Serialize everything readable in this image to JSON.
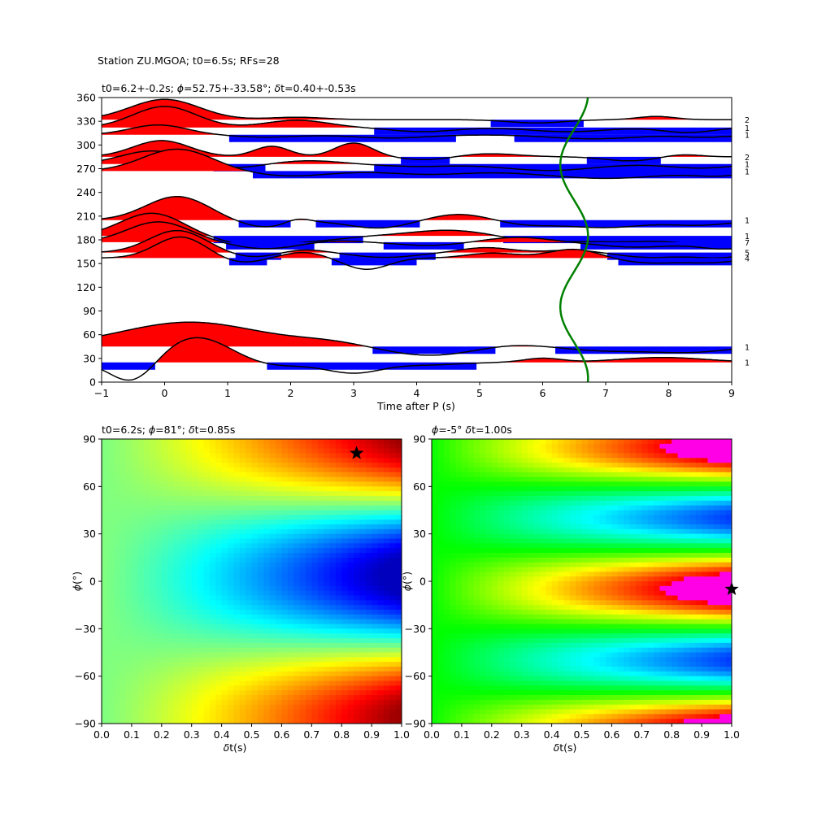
{
  "suptitle": "Station ZU.MGOA; t0=6.5s; RFs=28",
  "colors": {
    "positive_fill": "#ff0000",
    "negative_fill": "#0000ff",
    "trace_line": "#000000",
    "t0_curve": "#008000",
    "star": "#000000"
  },
  "chart_data": [
    {
      "type": "line",
      "panel": "receiver-function-gather",
      "title": "t0=6.2+-0.2s; $\\phi$=52.75+-33.58°; $\\delta$t=0.40+-0.53s",
      "title_segments": [
        {
          "t": "t0=6.2+-0.2s; "
        },
        {
          "t": "ϕ",
          "i": true
        },
        {
          "t": "=52.75+-33.58°; "
        },
        {
          "t": "δ",
          "i": true
        },
        {
          "t": "t=0.40+-0.53s"
        }
      ],
      "xlabel": "Time after P (s)",
      "ylabel": "",
      "xlim": [
        -1,
        9
      ],
      "ylim": [
        0,
        360
      ],
      "xticks": [
        -1,
        0,
        1,
        2,
        3,
        4,
        5,
        6,
        7,
        8,
        9
      ],
      "yticks": [
        0,
        30,
        60,
        90,
        120,
        150,
        180,
        210,
        240,
        270,
        300,
        330,
        360
      ],
      "grid": false,
      "t0_curve": {
        "color": "#008000",
        "x_at_0": 6.5,
        "amplitude": 0.22,
        "period_deg": 180,
        "phase_deg": 40
      },
      "traces": [
        {
          "baz": 332,
          "count": "2",
          "kind": "mix",
          "w": [
            [
              0.0,
              25,
              0.55
            ],
            [
              2.1,
              3,
              0.45
            ],
            [
              5.9,
              -4,
              0.45
            ],
            [
              7.8,
              4,
              0.3
            ]
          ]
        },
        {
          "baz": 322,
          "count": "1",
          "kind": "mix",
          "w": [
            [
              0.0,
              26,
              0.5
            ],
            [
              2.1,
              9,
              0.5
            ],
            [
              4.1,
              -5,
              0.5
            ],
            [
              6.4,
              -5,
              0.6
            ],
            [
              8.3,
              -6,
              0.4
            ]
          ]
        },
        {
          "baz": 313,
          "count": "1",
          "kind": "mix",
          "w": [
            [
              -0.1,
              12,
              0.45
            ],
            [
              1.6,
              -3,
              0.5
            ],
            [
              3.6,
              -4,
              0.6
            ],
            [
              6.8,
              -5,
              0.7
            ],
            [
              8.6,
              -3,
              0.4
            ]
          ]
        },
        {
          "baz": 285,
          "count": "2",
          "kind": "mix",
          "w": [
            [
              -0.05,
              20,
              0.45
            ],
            [
              1.7,
              13,
              0.28
            ],
            [
              3.0,
              17,
              0.3
            ],
            [
              4.2,
              -4,
              0.4
            ],
            [
              5.1,
              4,
              0.5
            ],
            [
              7.4,
              -5,
              0.4
            ],
            [
              8.2,
              3,
              0.3
            ]
          ]
        },
        {
          "baz": 276,
          "count": "1",
          "kind": "mix",
          "w": [
            [
              -0.2,
              16,
              0.5
            ],
            [
              1.1,
              -5,
              0.4
            ],
            [
              2.3,
              4,
              0.5
            ],
            [
              4.0,
              -3,
              0.6
            ],
            [
              6.1,
              -8,
              0.7
            ],
            [
              8.5,
              -5,
              0.5
            ]
          ]
        },
        {
          "baz": 267,
          "count": "1",
          "kind": "mix",
          "w": [
            [
              0.2,
              27,
              0.55
            ],
            [
              2.0,
              -6,
              0.6
            ],
            [
              4.2,
              -4,
              0.6
            ],
            [
              7.0,
              -9,
              0.9
            ],
            [
              8.8,
              -5,
              0.4
            ]
          ]
        },
        {
          "baz": 205,
          "count": "1",
          "kind": "mix",
          "w": [
            [
              0.2,
              29,
              0.5
            ],
            [
              1.6,
              -9,
              0.45
            ],
            [
              2.1,
              6,
              0.2
            ],
            [
              3.4,
              -10,
              0.5
            ],
            [
              4.7,
              8,
              0.5
            ],
            [
              5.7,
              -6,
              0.5
            ],
            [
              7.0,
              -9,
              0.6
            ],
            [
              8.5,
              -6,
              0.5
            ]
          ]
        },
        {
          "baz": 185,
          "count": "1",
          "kind": "mix",
          "w": [
            [
              -0.2,
              28,
              0.5
            ],
            [
              1.5,
              -12,
              0.6
            ],
            [
              2.6,
              -3,
              0.4
            ],
            [
              4.5,
              7,
              0.6
            ],
            [
              5.9,
              -6,
              0.5
            ],
            [
              7.2,
              -7,
              0.7
            ],
            [
              8.7,
              -10,
              0.5
            ]
          ]
        },
        {
          "baz": 177,
          "count": "7",
          "kind": "mix",
          "w": [
            [
              -0.1,
              25,
              0.5
            ],
            [
              1.6,
              -8,
              0.5
            ],
            [
              2.7,
              2,
              0.4
            ],
            [
              4.2,
              -4,
              0.5
            ],
            [
              5.6,
              6,
              0.5
            ],
            [
              7.5,
              -6,
              0.6
            ],
            [
              8.9,
              -8,
              0.4
            ]
          ]
        },
        {
          "baz": 164,
          "count": "5",
          "kind": "mix",
          "w": [
            [
              0.2,
              27,
              0.45
            ],
            [
              1.4,
              -6,
              0.4
            ],
            [
              2.2,
              4,
              0.35
            ],
            [
              3.5,
              -6,
              0.5
            ],
            [
              5.1,
              6,
              0.4
            ],
            [
              6.5,
              3,
              0.4
            ],
            [
              7.7,
              -6,
              0.5
            ],
            [
              8.8,
              -6,
              0.4
            ]
          ]
        },
        {
          "baz": 157,
          "count": "4",
          "kind": "mix",
          "w": [
            [
              0.25,
              26,
              0.4
            ],
            [
              1.2,
              -6,
              0.35
            ],
            [
              2.2,
              7,
              0.35
            ],
            [
              3.2,
              -14,
              0.35
            ],
            [
              5.2,
              6,
              0.4
            ],
            [
              6.5,
              11,
              0.4
            ],
            [
              7.7,
              -6,
              0.5
            ],
            [
              8.7,
              -5,
              0.4
            ]
          ]
        },
        {
          "baz": 45,
          "count": "1",
          "kind": "mix",
          "w": [
            [
              0.4,
              30,
              1.1
            ],
            [
              2.6,
              5,
              0.6
            ],
            [
              4.2,
              -11,
              0.7
            ],
            [
              5.5,
              3,
              0.5
            ],
            [
              7.0,
              -5,
              0.6
            ],
            [
              8.3,
              -7,
              0.6
            ]
          ]
        },
        {
          "baz": 25,
          "count": "1",
          "kind": "mix",
          "w": [
            [
              -0.5,
              -27,
              0.35
            ],
            [
              0.5,
              31,
              0.55
            ],
            [
              1.7,
              -5,
              0.5
            ],
            [
              3.0,
              -13,
              0.45
            ],
            [
              4.2,
              -3,
              0.5
            ],
            [
              6.0,
              5,
              0.3
            ],
            [
              7.9,
              6,
              0.7
            ]
          ]
        }
      ]
    },
    {
      "type": "heatmap",
      "panel": "energy-grid-left",
      "title_segments": [
        {
          "t": "t0=6.2s; "
        },
        {
          "t": "ϕ",
          "i": true
        },
        {
          "t": "=81°; "
        },
        {
          "t": "δ",
          "i": true
        },
        {
          "t": "t=0.85s"
        }
      ],
      "xlabel": "δt(s)",
      "ylabel": "ϕ(°)",
      "xlim": [
        0,
        1
      ],
      "ylim": [
        -90,
        90
      ],
      "xticks": [
        "0.0",
        "0.1",
        "0.2",
        "0.3",
        "0.4",
        "0.5",
        "0.6",
        "0.7",
        "0.8",
        "0.9",
        "1.0"
      ],
      "yticks": [
        "90",
        "60",
        "30",
        "0",
        "−30",
        "−60",
        "−90"
      ],
      "colormap": "jet",
      "best": {
        "dt": 0.85,
        "phi": 81
      },
      "field": "0.5 - 0.5*dt^1.2*cos(2*(phi-8))"
    },
    {
      "type": "heatmap",
      "panel": "energy-grid-right",
      "title_segments": [
        {
          "t": "ϕ",
          "i": true
        },
        {
          "t": "=-5° "
        },
        {
          "t": "δ",
          "i": true
        },
        {
          "t": "t=1.00s"
        }
      ],
      "xlabel": "δt(s)",
      "ylabel": "ϕ(°)",
      "xlim": [
        0,
        1
      ],
      "ylim": [
        -90,
        90
      ],
      "xticks": [
        "0.0",
        "0.1",
        "0.2",
        "0.3",
        "0.4",
        "0.5",
        "0.6",
        "0.7",
        "0.8",
        "0.9",
        "1.0"
      ],
      "yticks": [
        "90",
        "60",
        "30",
        "0",
        "−30",
        "−60",
        "−90"
      ],
      "colormap": "hsv",
      "best": {
        "dt": 1.0,
        "phi": -5
      },
      "field": "0.33 - 0.36*dt*cos(4*(phi+5))"
    }
  ]
}
